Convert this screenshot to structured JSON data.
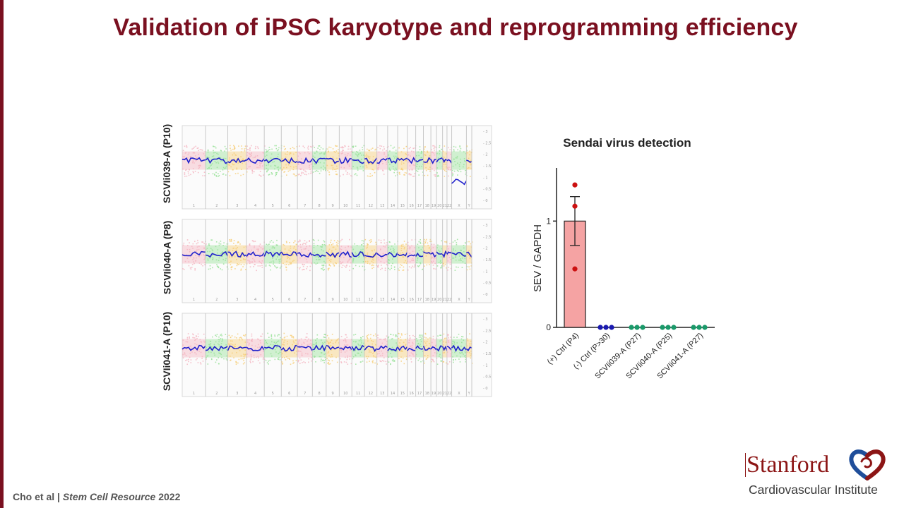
{
  "slide": {
    "title": "Validation of iPSC karyotype and reprogramming efficiency",
    "accent_color": "#7a1020"
  },
  "karyotype": {
    "panels": [
      {
        "label": "SCVIi039-A (P10)",
        "abnormal_tail": true
      },
      {
        "label": "SCVIi040-A (P8)",
        "abnormal_tail": false
      },
      {
        "label": "SCVIi041-A (P10)",
        "abnormal_tail": false
      }
    ],
    "chromosome_labels": [
      "1",
      "2",
      "3",
      "4",
      "5",
      "6",
      "7",
      "8",
      "9",
      "10",
      "11",
      "12",
      "13",
      "14",
      "15",
      "16",
      "17",
      "18",
      "19",
      "20",
      "21",
      "22",
      "X",
      "Y"
    ],
    "yaxis_ticks": [
      "3",
      "2.5",
      "2",
      "1.5",
      "1",
      "0.5",
      "0"
    ],
    "segment_colors": [
      "#f4b6c2",
      "#9be29b",
      "#f7cf7a"
    ],
    "trace_color": "#2222cc"
  },
  "chart_data": {
    "type": "bar",
    "title": "Sendai virus detection",
    "ylabel": "SEV / GAPDH",
    "xlabel": "",
    "ylim": [
      0,
      1.5
    ],
    "yticks": [
      0,
      1
    ],
    "categories": [
      "(+) Ctrl (P4)",
      "(-) Ctrl (P>30)",
      "SCVIi039-A (P27)",
      "SCVIi040-A (P25)",
      "SCVIi041-A (P27)"
    ],
    "values": [
      1.0,
      0,
      0,
      0,
      0
    ],
    "error": [
      0.23,
      0,
      0,
      0,
      0
    ],
    "points": [
      [
        1.34,
        1.14,
        0.55
      ],
      [
        0,
        0,
        0
      ],
      [
        0,
        0,
        0
      ],
      [
        0,
        0,
        0
      ],
      [
        0,
        0,
        0
      ]
    ],
    "point_colors": [
      "#cc1111",
      "#1a1ab0",
      "#1a9a6a",
      "#1a9a6a",
      "#1a9a6a"
    ],
    "bar_color": "#f5a3a3"
  },
  "citation": {
    "authors": "Cho et al |",
    "journal": "Stem Cell Resource",
    "year": "2022"
  },
  "logo": {
    "name": "Stanford",
    "subtitle": "Cardiovascular Institute",
    "brand_color": "#8c1515"
  }
}
